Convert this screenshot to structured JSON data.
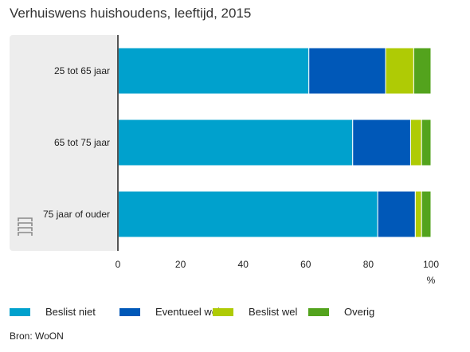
{
  "title": "Verhuiswens huishoudens, leeftijd, 2015",
  "source": "Bron: WoON",
  "logo_text": "cbs",
  "chart_data": {
    "type": "bar",
    "orientation": "horizontal",
    "stacked": true,
    "title": "Verhuiswens huishoudens, leeftijd, 2015",
    "categories": [
      "25 tot 65 jaar",
      "65 tot 75 jaar",
      "75 jaar of ouder"
    ],
    "series": [
      {
        "name": "Beslist niet",
        "color": "#00a1cd",
        "values": [
          61,
          75,
          83
        ]
      },
      {
        "name": "Eventueel wel",
        "color": "#0058b8",
        "values": [
          24.5,
          18.5,
          12
        ]
      },
      {
        "name": "Beslist wel",
        "color": "#afcb05",
        "values": [
          9,
          3.5,
          2
        ]
      },
      {
        "name": "Overig",
        "color": "#53a31d",
        "values": [
          5.5,
          3,
          3
        ]
      }
    ],
    "xlim": [
      0,
      100
    ],
    "xticks": [
      0,
      20,
      40,
      60,
      80,
      100
    ],
    "xunit": "%",
    "grid": false,
    "legend": "bottom"
  }
}
